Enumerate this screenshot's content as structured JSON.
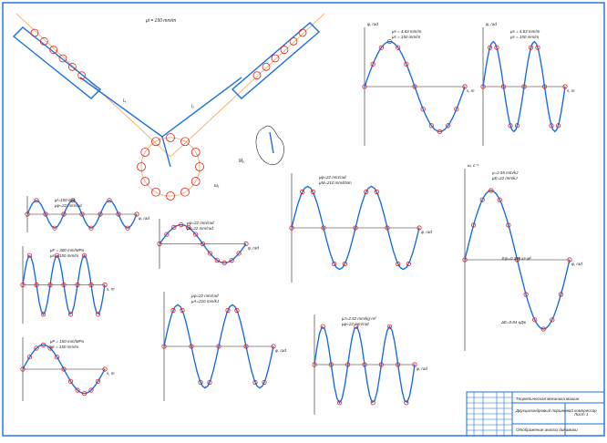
{
  "sheet": {
    "frame_color": "#1a6fe0",
    "curve_color": "#1a6fe0",
    "point_color": "#e02020",
    "axis_line_color": "#f0a050"
  },
  "mechanism": {
    "scale_label": "μl = 150 mm/m",
    "labels": {
      "link_left": "l₄",
      "link_right": "l₂",
      "crank": "l₁",
      "omega": "ω₁",
      "point_b": "B",
      "point_a": "A",
      "point_o": "O"
    }
  },
  "force_diagram": {
    "labels": {
      "m_label": "Mᵧ",
      "omega": "ω₁"
    }
  },
  "plots": [
    {
      "id": "s-left",
      "scale1": "μs = 4.63 mm/m",
      "scale2": "μs = 150 mm/m",
      "xlabel": "s, m",
      "ylabel": "φ, rad"
    },
    {
      "id": "s-right",
      "scale1": "μs = 4.63 mm/m",
      "scale2": "μs = 150 mm/m",
      "xlabel": "s, m",
      "ylabel": "φ, rad"
    },
    {
      "id": "disp",
      "scale1": "μl=150 mm",
      "scale2": "μφ=22 mm/rad",
      "xlabel": "φ, rad"
    },
    {
      "id": "analog",
      "scale1": "μφ=22 mm/rad",
      "scale2": "μv=22 mm/rad",
      "xlabel": "φ, rad"
    },
    {
      "id": "moment",
      "scale1": "μφ=22 mm/rad",
      "scale2": "μM=210 mm/kNm",
      "xlabel": "φ, rad"
    },
    {
      "id": "force1",
      "scale1": "μF = 300 mm/MPa",
      "scale2": "μs = 150 mm/m",
      "xlabel": "s, m"
    },
    {
      "id": "force2",
      "scale1": "μF = 150 mm/MPa",
      "scale2": "μs = 150 mm/m",
      "xlabel": "s, m"
    },
    {
      "id": "work",
      "scale1": "μφ=22 mm/rad",
      "scale2": "μA=210 mm/kJ",
      "xlabel": "φ, rad"
    },
    {
      "id": "inertia",
      "scale1": "μJ=2.52 mm/kg·m²",
      "scale2": "μφ=22 mm/rad",
      "xlabel": "φ, rad"
    },
    {
      "id": "energy",
      "scale1": "μ=2.55 mm/kJ",
      "scale2": "μE=22 mm/kJ",
      "xlabel": "φ, rad",
      "ylabel": "ω, c⁻¹",
      "note1": "Jпр=0.139 кг·м²",
      "note2": "ΔE=0.84 кДж"
    }
  ],
  "title_block": {
    "title": "Теоретическая механика машин",
    "subtitle": "Двухцилиндровый поршневой компрессор",
    "sheet_name": "Отображение анализ динамики",
    "sheet_no": "Лист 1",
    "mass": "",
    "scale": ""
  }
}
